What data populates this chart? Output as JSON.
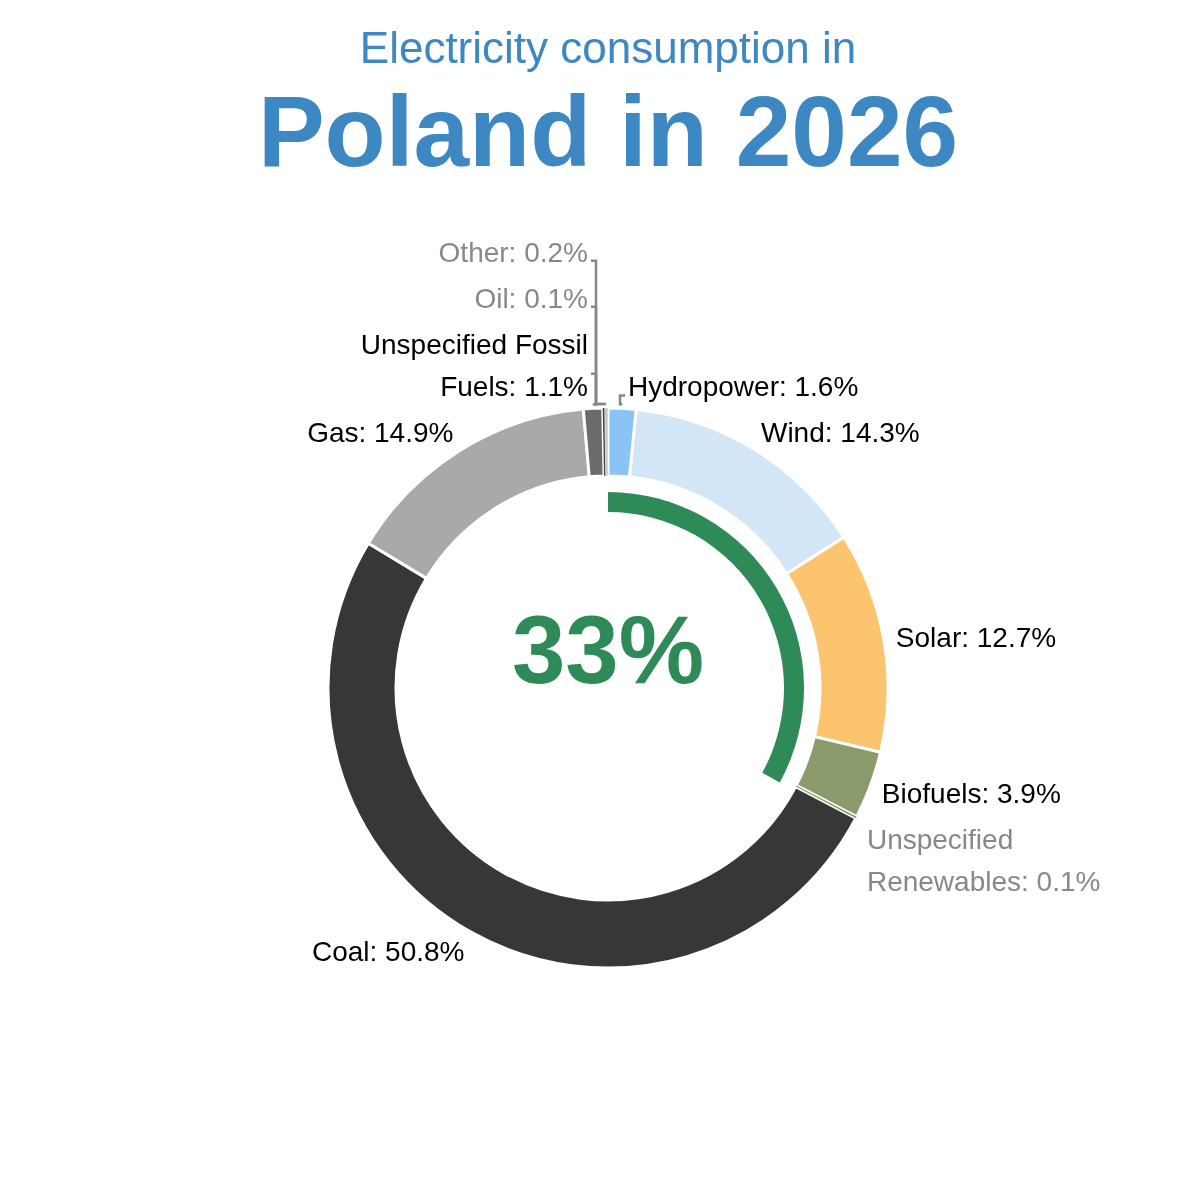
{
  "chart_data": [
    {
      "type": "donut",
      "title": "Electricity consumption in",
      "subtitle": "Poland in 2026",
      "categories": [
        "Hydropower",
        "Wind",
        "Solar",
        "Biofuels",
        "Unspecified Renewables",
        "Coal",
        "Gas",
        "Unspecified Fossil Fuels",
        "Oil",
        "Other"
      ],
      "values": [
        1.6,
        14.3,
        12.7,
        3.9,
        0.1,
        50.8,
        14.9,
        1.1,
        0.1,
        0.2
      ],
      "colors": [
        "#89c4f4",
        "#d2e6f6",
        "#fdc470",
        "#8a9a6b",
        "#6a9a50",
        "#373737",
        "#a9a9a9",
        "#6b6b6b",
        "#2a2a2a",
        "#c8c8c8"
      ],
      "value_labels": [
        "1.6%",
        "14.3%",
        "12.7%",
        "3.9%",
        "0.1%",
        "50.8%",
        "14.9%",
        "1.1%",
        "0.1%",
        "0.2%"
      ]
    },
    {
      "type": "other",
      "values": [
        33
      ],
      "colors": [
        "#2e8b57"
      ],
      "value_labels": [
        "33%"
      ]
    }
  ]
}
